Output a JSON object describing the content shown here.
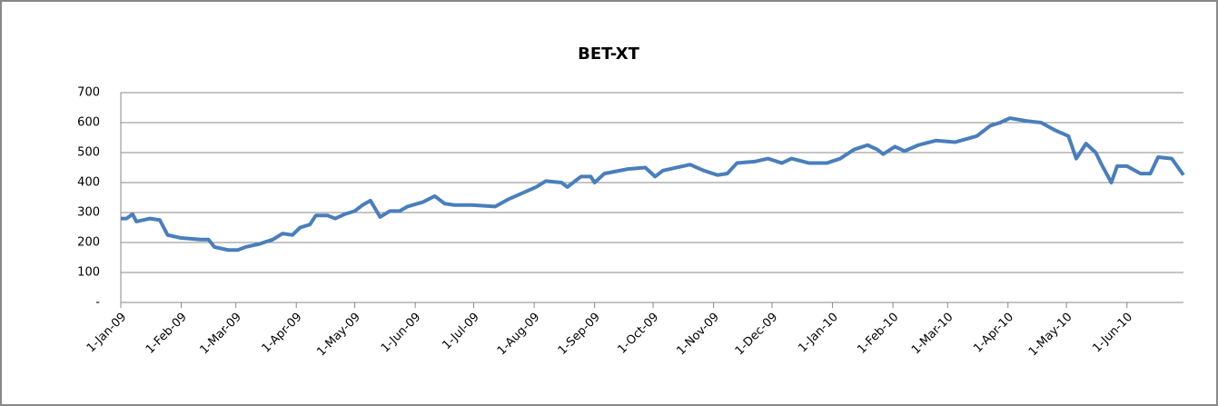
{
  "chart_data": {
    "type": "line",
    "title": "BET-XT",
    "x": [
      "2009-01-01",
      "2009-01-04",
      "2009-01-07",
      "2009-01-09",
      "2009-01-16",
      "2009-01-21",
      "2009-01-23",
      "2009-01-25",
      "2009-02-01",
      "2009-02-11",
      "2009-02-15",
      "2009-02-18",
      "2009-02-25",
      "2009-03-02",
      "2009-03-06",
      "2009-03-13",
      "2009-03-20",
      "2009-03-25",
      "2009-03-30",
      "2009-04-03",
      "2009-04-08",
      "2009-04-11",
      "2009-04-17",
      "2009-04-21",
      "2009-04-26",
      "2009-05-01",
      "2009-05-05",
      "2009-05-09",
      "2009-05-14",
      "2009-05-19",
      "2009-05-24",
      "2009-05-28",
      "2009-06-05",
      "2009-06-11",
      "2009-06-16",
      "2009-06-21",
      "2009-06-30",
      "2009-07-12",
      "2009-07-19",
      "2009-07-26",
      "2009-08-02",
      "2009-08-07",
      "2009-08-15",
      "2009-08-18",
      "2009-08-25",
      "2009-08-30",
      "2009-09-01",
      "2009-09-06",
      "2009-09-18",
      "2009-09-27",
      "2009-10-02",
      "2009-10-06",
      "2009-10-20",
      "2009-10-27",
      "2009-11-03",
      "2009-11-08",
      "2009-11-13",
      "2009-11-22",
      "2009-11-29",
      "2009-12-06",
      "2009-12-11",
      "2009-12-20",
      "2009-12-29",
      "2010-01-05",
      "2010-01-12",
      "2010-01-19",
      "2010-01-24",
      "2010-01-27",
      "2010-02-02",
      "2010-02-07",
      "2010-02-14",
      "2010-02-23",
      "2010-03-05",
      "2010-03-16",
      "2010-03-23",
      "2010-03-28",
      "2010-04-02",
      "2010-04-11",
      "2010-04-18",
      "2010-04-25",
      "2010-05-02",
      "2010-05-06",
      "2010-05-11",
      "2010-05-16",
      "2010-05-19",
      "2010-05-24",
      "2010-05-27",
      "2010-06-01",
      "2010-06-08",
      "2010-06-13",
      "2010-06-17",
      "2010-06-24",
      "2010-06-30"
    ],
    "series": [
      {
        "name": "BET-XT",
        "color": "#4a7ebb",
        "values": [
          280,
          280,
          295,
          270,
          280,
          275,
          250,
          225,
          215,
          210,
          210,
          185,
          175,
          175,
          185,
          195,
          210,
          230,
          225,
          250,
          260,
          290,
          290,
          280,
          295,
          305,
          325,
          340,
          285,
          305,
          305,
          320,
          335,
          355,
          330,
          325,
          325,
          320,
          345,
          365,
          385,
          405,
          400,
          385,
          420,
          420,
          400,
          430,
          445,
          450,
          420,
          440,
          460,
          440,
          425,
          430,
          465,
          470,
          480,
          465,
          480,
          465,
          465,
          480,
          510,
          525,
          510,
          495,
          520,
          505,
          525,
          540,
          535,
          555,
          590,
          600,
          615,
          605,
          600,
          575,
          555,
          480,
          530,
          500,
          460,
          400,
          455,
          455,
          430,
          430,
          485,
          480,
          425
        ]
      }
    ],
    "xlim": [
      "2009-01-01",
      "2010-06-30"
    ],
    "xticks": [
      {
        "value": "2009-01-01",
        "label": "1-Jan-09"
      },
      {
        "value": "2009-02-01",
        "label": "1-Feb-09"
      },
      {
        "value": "2009-03-01",
        "label": "1-Mar-09"
      },
      {
        "value": "2009-04-01",
        "label": "1-Apr-09"
      },
      {
        "value": "2009-05-01",
        "label": "1-May-09"
      },
      {
        "value": "2009-06-01",
        "label": "1-Jun-09"
      },
      {
        "value": "2009-07-01",
        "label": "1-Jul-09"
      },
      {
        "value": "2009-08-01",
        "label": "1-Aug-09"
      },
      {
        "value": "2009-09-01",
        "label": "1-Sep-09"
      },
      {
        "value": "2009-10-01",
        "label": "1-Oct-09"
      },
      {
        "value": "2009-11-01",
        "label": "1-Nov-09"
      },
      {
        "value": "2009-12-01",
        "label": "1-Dec-09"
      },
      {
        "value": "2010-01-01",
        "label": "1-Jan-10"
      },
      {
        "value": "2010-02-01",
        "label": "1-Feb-10"
      },
      {
        "value": "2010-03-01",
        "label": "1-Mar-10"
      },
      {
        "value": "2010-04-01",
        "label": "1-Apr-10"
      },
      {
        "value": "2010-05-01",
        "label": "1-May-10"
      },
      {
        "value": "2010-06-01",
        "label": "1-Jun-10"
      }
    ],
    "ylim": [
      0,
      700
    ],
    "yticks": [
      {
        "value": 0,
        "label": "-"
      },
      100,
      200,
      300,
      400,
      500,
      600,
      700
    ],
    "grid": true
  }
}
